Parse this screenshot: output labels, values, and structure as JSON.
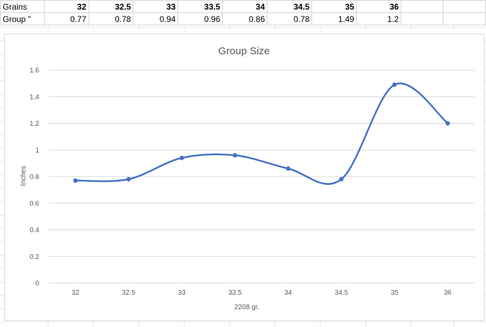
{
  "table": {
    "row_labels": [
      "Grains",
      "Group \""
    ],
    "grains": [
      "32",
      "32.5",
      "33",
      "33.5",
      "34",
      "34.5",
      "35",
      "36"
    ],
    "group": [
      "0.77",
      "0.78",
      "0.94",
      "0.96",
      "0.86",
      "0.78",
      "1.49",
      "1.2"
    ]
  },
  "chart_data": {
    "type": "line",
    "title": "Group Size",
    "xlabel": "2208 gr.",
    "ylabel": "Inches",
    "categories": [
      "32",
      "32.5",
      "33",
      "33.5",
      "34",
      "34.5",
      "35",
      "36"
    ],
    "values": [
      0.77,
      0.78,
      0.94,
      0.96,
      0.86,
      0.78,
      1.49,
      1.2
    ],
    "yticks": [
      "0",
      "0.2",
      "0.4",
      "0.6",
      "0.8",
      "1",
      "1.2",
      "1.4",
      "1.6"
    ],
    "ylim": [
      0,
      1.6
    ],
    "smooth": true,
    "grid": true,
    "legend": "none",
    "colors": {
      "line": "#4472C4",
      "grid": "#d9d9d9",
      "text": "#595959"
    }
  }
}
